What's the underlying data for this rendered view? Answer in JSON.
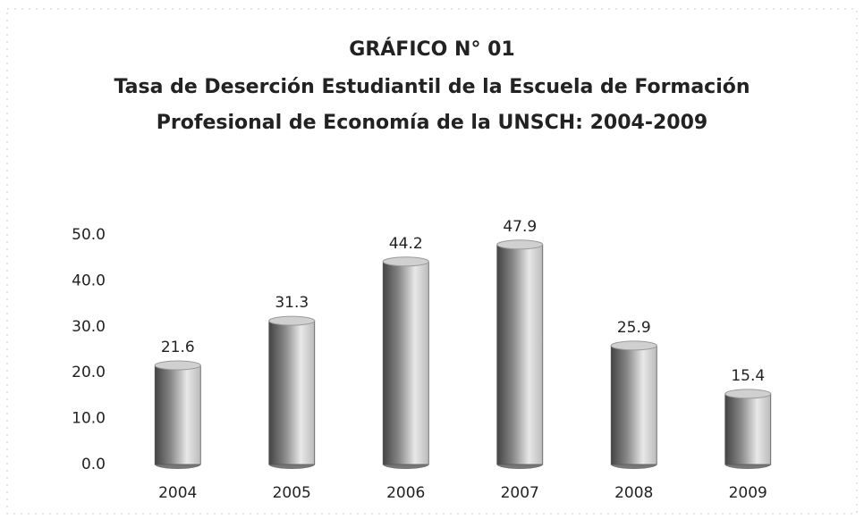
{
  "chart_data": {
    "type": "bar",
    "title": "GRÁFICO N° 01",
    "subtitle": [
      "Tasa de Deserción Estudiantil de la Escuela de Formación",
      "Profesional de Economía de la UNSCH: 2004-2009"
    ],
    "categories": [
      "2004",
      "2005",
      "2006",
      "2007",
      "2008",
      "2009"
    ],
    "values": [
      21.6,
      31.3,
      44.2,
      47.9,
      25.9,
      15.4
    ],
    "color": "#9a9a9a",
    "ylim": [
      0,
      50
    ],
    "yticks": [
      {
        "value": 0,
        "label": "0.0"
      },
      {
        "value": 10,
        "label": "10.0"
      },
      {
        "value": 20,
        "label": "20.0"
      },
      {
        "value": 30,
        "label": "30.0"
      },
      {
        "value": 40,
        "label": "40.0"
      },
      {
        "value": 50,
        "label": "50.0"
      }
    ],
    "grid": false
  }
}
